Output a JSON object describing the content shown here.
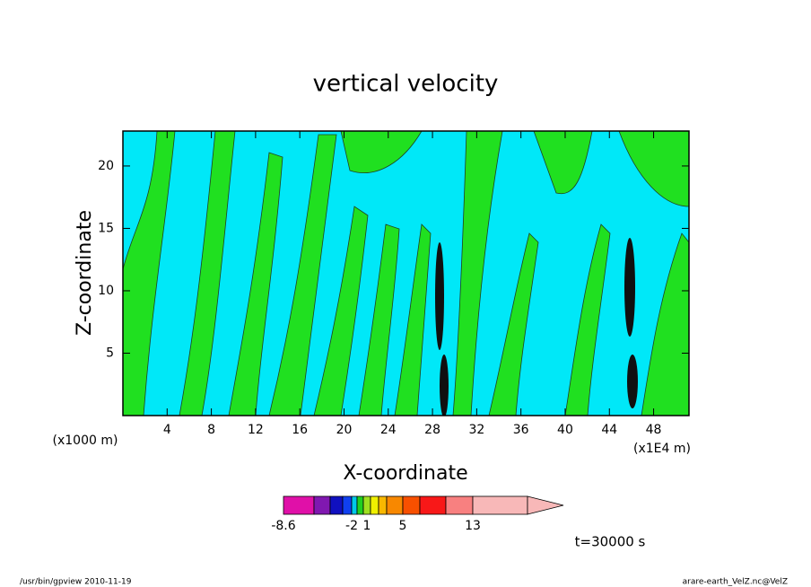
{
  "chart_data": {
    "type": "contour",
    "title": "vertical velocity",
    "x_label": "X-coordinate",
    "y_label": "Z-coordinate",
    "x_unit": "(x1000 m)",
    "x_scale_note": "(x1E4 m)",
    "xlim": [
      0,
      51.2
    ],
    "ylim": [
      0,
      22.8
    ],
    "xticks": [
      4,
      8,
      12,
      16,
      20,
      24,
      28,
      32,
      36,
      40,
      44,
      48
    ],
    "yticks": [
      5,
      10,
      15,
      20
    ],
    "colorbar": {
      "colors": [
        "#e010a8",
        "#8018b0",
        "#1010c0",
        "#1040f0",
        "#00c8e8",
        "#20d020",
        "#a0e020",
        "#f0f000",
        "#f8b800",
        "#f88800",
        "#f85000",
        "#f81818",
        "#f88080",
        "#f8b8b8"
      ],
      "ticks": [
        -8.6,
        -2,
        1,
        5,
        13
      ]
    },
    "time_label": "t=30000 s",
    "footer_left": "/usr/bin/gpview  2010-11-19",
    "footer_right": "arare-earth_VelZ.nc@VelZ"
  }
}
